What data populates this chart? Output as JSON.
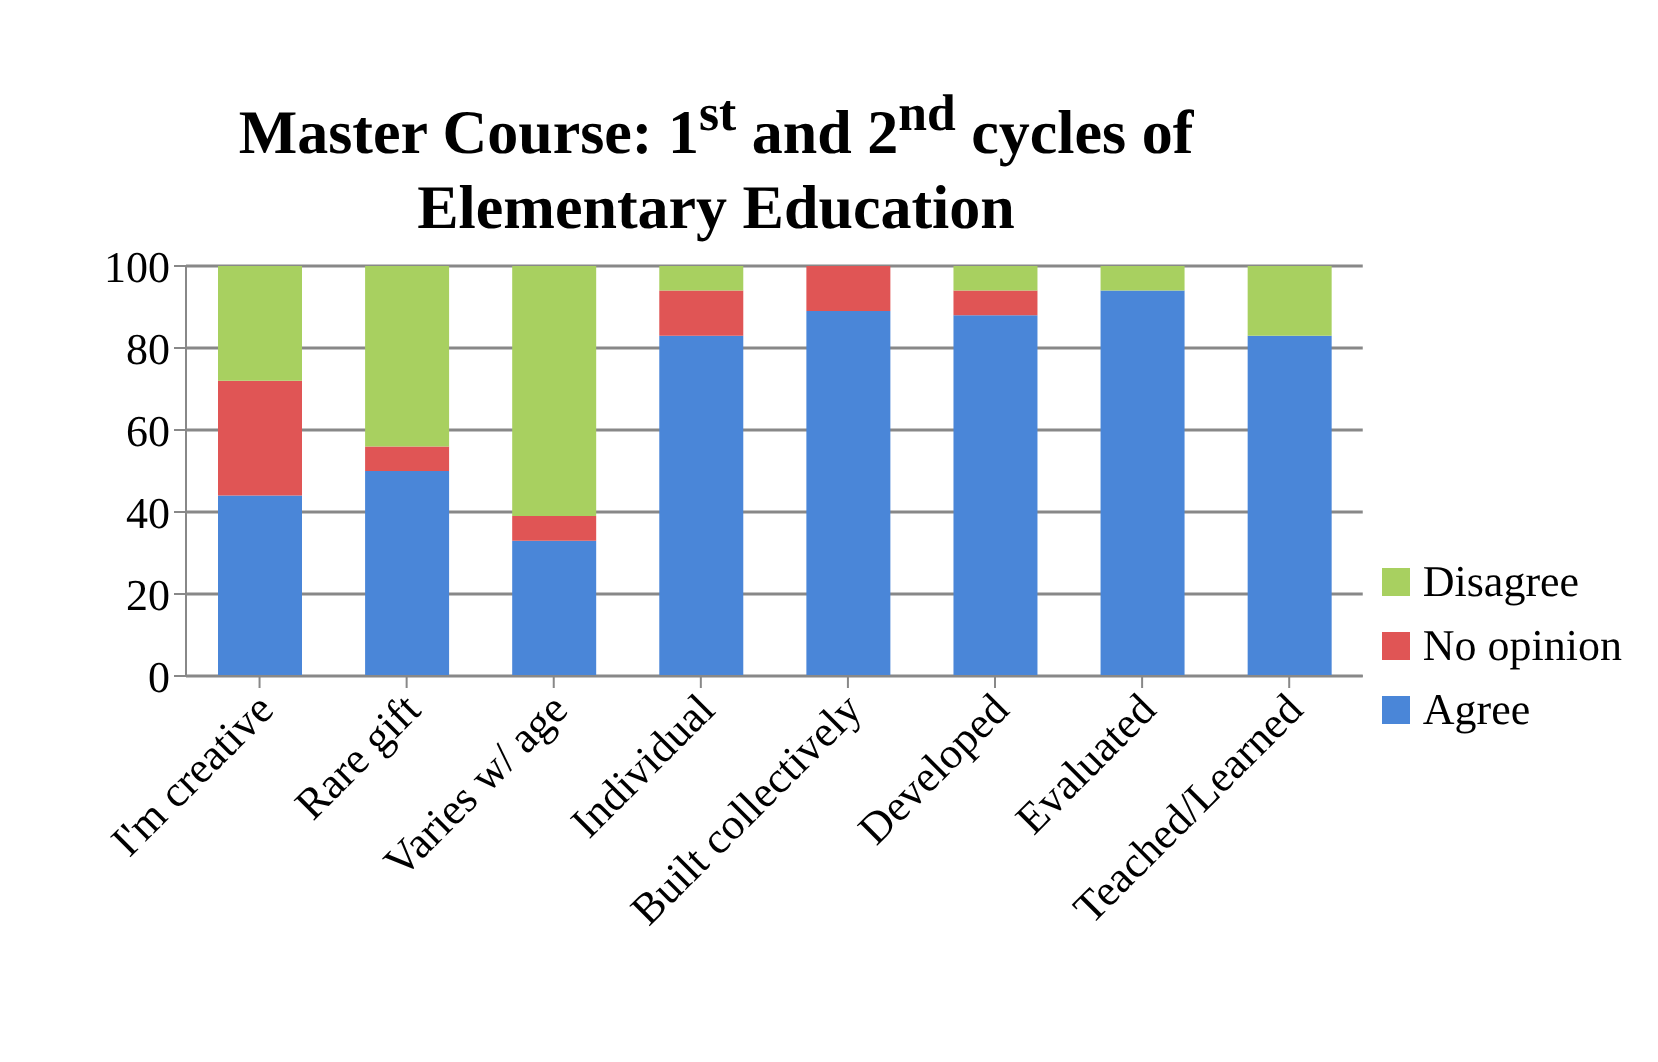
{
  "chart_data": {
    "type": "bar",
    "title": "Master Course: 1$^{st}$ and 2$^{nd}$  cycles of Elementary Education",
    "categories": [
      "I'm creative",
      "Rare gift",
      "Varies w/ age",
      "Individual",
      "Built collectively",
      "Developed",
      "Evaluated",
      "Teached/Learned"
    ],
    "stacked": true,
    "series": [
      {
        "name": "Agree",
        "color": "#4a86d8",
        "values": [
          44,
          50,
          33,
          83,
          89,
          88,
          94,
          83
        ]
      },
      {
        "name": "No opinion",
        "color": "#e05555",
        "values": [
          28,
          6,
          6,
          11,
          11,
          6,
          0,
          0
        ]
      },
      {
        "name": "Disagree",
        "color": "#a8d060",
        "values": [
          28,
          44,
          61,
          6,
          0,
          6,
          6,
          17
        ]
      }
    ],
    "ylim": [
      0,
      100
    ],
    "yticks": [
      0,
      20,
      40,
      60,
      80,
      100
    ],
    "grid": "y",
    "legend": "right"
  }
}
